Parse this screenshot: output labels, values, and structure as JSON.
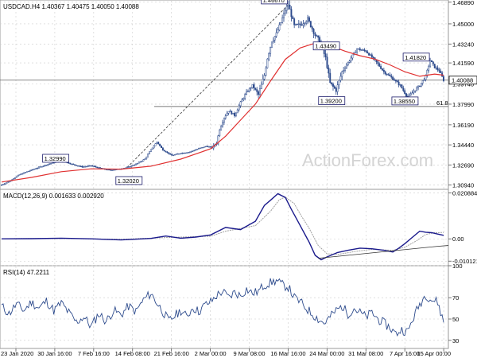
{
  "header": {
    "main": "USDCAD.H4  1.40367 1.40475 1.40050 1.40088",
    "macd": "MACD(12,26,9) 0.001633 0.002920",
    "rsi": "RSI(14) 47.2211"
  },
  "watermark": "ActionForex.com",
  "colors": {
    "candle": "#2c4a8c",
    "ma": "#e03030",
    "macd_line": "#1a1a8c",
    "signal_line": "#a0a0a0",
    "rsi_line": "#2c4a8c",
    "grid": "#cccccc",
    "level": "#505050"
  },
  "chart_data": [
    {
      "type": "candlestick",
      "title": "USDCAD.H4",
      "ylim": [
        1.3056,
        1.4708
      ],
      "yticks": [
        "1.46890",
        "1.45000",
        "1.43240",
        "1.41590",
        "1.39740",
        "1.37990",
        "1.36190",
        "1.34440",
        "1.32690",
        "1.30940"
      ],
      "current_price": "1.40088",
      "xticks": [
        "23 Jan 2020",
        "30 Jan 16:00",
        "7 Feb 16:00",
        "14 Feb 08:00",
        "21 Feb 16:00",
        "2 Mar 00:00",
        "9 Mar 08:00",
        "16 Mar 16:00",
        "24 Mar 00:00",
        "31 Mar 08:00",
        "7 Apr 16:00",
        "15 Apr 00:00"
      ],
      "annotations": [
        "1.32990",
        "1.32020",
        "1.46670",
        "1.43490",
        "1.39200",
        "1.38550",
        "1.41820"
      ],
      "fib_label": "61.8",
      "fib_level": 1.3779,
      "ma_series": "red moving average",
      "price_path": [
        [
          0,
          1.3095
        ],
        [
          5,
          1.3125
        ],
        [
          12,
          1.3185
        ],
        [
          20,
          1.3225
        ],
        [
          28,
          1.3262
        ],
        [
          36,
          1.3295
        ],
        [
          42,
          1.3298
        ],
        [
          48,
          1.3272
        ],
        [
          54,
          1.3252
        ],
        [
          60,
          1.3262
        ],
        [
          66,
          1.324
        ],
        [
          72,
          1.3224
        ],
        [
          78,
          1.3232
        ],
        [
          84,
          1.3246
        ],
        [
          90,
          1.3276
        ],
        [
          96,
          1.3321
        ],
        [
          100,
          1.3402
        ],
        [
          104,
          1.347
        ],
        [
          108,
          1.34
        ],
        [
          114,
          1.3352
        ],
        [
          120,
          1.3372
        ],
        [
          126,
          1.3382
        ],
        [
          132,
          1.3412
        ],
        [
          137,
          1.3432
        ],
        [
          141,
          1.3422
        ],
        [
          144,
          1.3461
        ],
        [
          146,
          1.3582
        ],
        [
          149,
          1.3682
        ],
        [
          152,
          1.3742
        ],
        [
          156,
          1.3702
        ],
        [
          160,
          1.3812
        ],
        [
          164,
          1.3902
        ],
        [
          168,
          1.3962
        ],
        [
          172,
          1.3882
        ],
        [
          176,
          1.4052
        ],
        [
          178,
          1.4202
        ],
        [
          181,
          1.4352
        ],
        [
          184,
          1.4412
        ],
        [
          187,
          1.4512
        ],
        [
          190,
          1.4622
        ],
        [
          192,
          1.4667
        ],
        [
          196,
          1.4482
        ],
        [
          200,
          1.4492
        ],
        [
          205,
          1.4542
        ],
        [
          210,
          1.4402
        ],
        [
          213,
          1.4349
        ],
        [
          217,
          1.4202
        ],
        [
          220,
          1.3982
        ],
        [
          224,
          1.392
        ],
        [
          228,
          1.4082
        ],
        [
          233,
          1.4182
        ],
        [
          238,
          1.4282
        ],
        [
          244,
          1.4262
        ],
        [
          250,
          1.4182
        ],
        [
          256,
          1.4082
        ],
        [
          262,
          1.4022
        ],
        [
          267,
          1.3962
        ],
        [
          272,
          1.3855
        ],
        [
          276,
          1.3912
        ],
        [
          280,
          1.3962
        ],
        [
          284,
          1.4042
        ],
        [
          287,
          1.4182
        ],
        [
          290,
          1.4122
        ],
        [
          293,
          1.4092
        ],
        [
          296,
          1.4009
        ]
      ],
      "ma_path": [
        [
          0,
          1.312
        ],
        [
          20,
          1.316
        ],
        [
          40,
          1.321
        ],
        [
          60,
          1.3235
        ],
        [
          80,
          1.3232
        ],
        [
          100,
          1.3258
        ],
        [
          120,
          1.332
        ],
        [
          140,
          1.341
        ],
        [
          150,
          1.352
        ],
        [
          160,
          1.366
        ],
        [
          170,
          1.38
        ],
        [
          180,
          1.4
        ],
        [
          190,
          1.419
        ],
        [
          200,
          1.429
        ],
        [
          210,
          1.4332
        ],
        [
          220,
          1.431
        ],
        [
          230,
          1.4262
        ],
        [
          240,
          1.4222
        ],
        [
          250,
          1.4192
        ],
        [
          260,
          1.4142
        ],
        [
          270,
          1.4082
        ],
        [
          280,
          1.4042
        ],
        [
          290,
          1.4062
        ],
        [
          296,
          1.4052
        ]
      ]
    },
    {
      "type": "line",
      "title": "MACD(12,26,9)",
      "ylim": [
        -0.0122,
        0.0225
      ],
      "yticks": [
        "0.020884",
        "0.00",
        "-0.010121"
      ],
      "macd_path": [
        [
          0,
          0.0
        ],
        [
          20,
          0.0001
        ],
        [
          40,
          0.0003
        ],
        [
          60,
          0.0
        ],
        [
          80,
          -0.0005
        ],
        [
          100,
          0.0002
        ],
        [
          110,
          0.0013
        ],
        [
          120,
          0.0003
        ],
        [
          130,
          0.0008
        ],
        [
          140,
          0.0018
        ],
        [
          150,
          0.0052
        ],
        [
          160,
          0.0042
        ],
        [
          170,
          0.008
        ],
        [
          176,
          0.0152
        ],
        [
          180,
          0.0175
        ],
        [
          185,
          0.0205
        ],
        [
          190,
          0.0188
        ],
        [
          194,
          0.0135
        ],
        [
          198,
          0.0085
        ],
        [
          202,
          0.0035
        ],
        [
          206,
          -0.0015
        ],
        [
          210,
          -0.0075
        ],
        [
          214,
          -0.0095
        ],
        [
          218,
          -0.0082
        ],
        [
          225,
          -0.0062
        ],
        [
          232,
          -0.0052
        ],
        [
          240,
          -0.0042
        ],
        [
          248,
          -0.0045
        ],
        [
          256,
          -0.0052
        ],
        [
          262,
          -0.006
        ],
        [
          266,
          -0.0042
        ],
        [
          270,
          -0.0022
        ],
        [
          276,
          0.0012
        ],
        [
          280,
          0.0035
        ],
        [
          284,
          0.003
        ],
        [
          288,
          0.0028
        ],
        [
          292,
          0.0022
        ],
        [
          296,
          0.0016
        ]
      ],
      "signal_path": [
        [
          0,
          0.0001
        ],
        [
          40,
          0.0002
        ],
        [
          80,
          -0.0002
        ],
        [
          110,
          0.0006
        ],
        [
          140,
          0.0012
        ],
        [
          150,
          0.0035
        ],
        [
          170,
          0.006
        ],
        [
          180,
          0.0125
        ],
        [
          186,
          0.0178
        ],
        [
          190,
          0.019
        ],
        [
          196,
          0.016
        ],
        [
          200,
          0.0112
        ],
        [
          206,
          0.0048
        ],
        [
          212,
          -0.003
        ],
        [
          218,
          -0.0068
        ],
        [
          226,
          -0.007
        ],
        [
          236,
          -0.0058
        ],
        [
          248,
          -0.0048
        ],
        [
          262,
          -0.0052
        ],
        [
          270,
          -0.0038
        ],
        [
          278,
          -0.0008
        ],
        [
          284,
          0.002
        ],
        [
          290,
          0.0028
        ],
        [
          296,
          0.0029
        ]
      ],
      "trendline": [
        [
          212,
          -0.0088
        ],
        [
          292,
          -0.0034
        ]
      ]
    },
    {
      "type": "line",
      "title": "RSI(14)",
      "ylim": [
        22.4,
        100
      ],
      "yticks": [
        "100",
        "70",
        "50",
        "30"
      ],
      "rsi_path": [
        [
          0,
          62
        ],
        [
          5,
          55
        ],
        [
          10,
          64
        ],
        [
          15,
          58
        ],
        [
          20,
          66
        ],
        [
          25,
          60
        ],
        [
          30,
          67
        ],
        [
          35,
          58
        ],
        [
          40,
          65
        ],
        [
          45,
          56
        ],
        [
          50,
          47
        ],
        [
          55,
          52
        ],
        [
          60,
          43
        ],
        [
          65,
          55
        ],
        [
          70,
          48
        ],
        [
          75,
          58
        ],
        [
          80,
          54
        ],
        [
          85,
          62
        ],
        [
          90,
          57
        ],
        [
          95,
          68
        ],
        [
          100,
          74
        ],
        [
          104,
          65
        ],
        [
          108,
          57
        ],
        [
          112,
          48
        ],
        [
          116,
          53
        ],
        [
          120,
          58
        ],
        [
          124,
          52
        ],
        [
          128,
          61
        ],
        [
          132,
          57
        ],
        [
          136,
          63
        ],
        [
          140,
          66
        ],
        [
          144,
          72
        ],
        [
          148,
          76
        ],
        [
          152,
          70
        ],
        [
          156,
          75
        ],
        [
          160,
          72
        ],
        [
          164,
          78
        ],
        [
          168,
          74
        ],
        [
          172,
          76
        ],
        [
          176,
          82
        ],
        [
          180,
          84
        ],
        [
          184,
          86
        ],
        [
          188,
          82
        ],
        [
          192,
          80
        ],
        [
          196,
          70
        ],
        [
          200,
          66
        ],
        [
          204,
          60
        ],
        [
          208,
          55
        ],
        [
          212,
          50
        ],
        [
          216,
          46
        ],
        [
          220,
          52
        ],
        [
          224,
          58
        ],
        [
          228,
          62
        ],
        [
          232,
          55
        ],
        [
          236,
          60
        ],
        [
          240,
          56
        ],
        [
          244,
          52
        ],
        [
          248,
          56
        ],
        [
          252,
          50
        ],
        [
          256,
          46
        ],
        [
          260,
          42
        ],
        [
          264,
          36
        ],
        [
          268,
          40
        ],
        [
          272,
          38
        ],
        [
          276,
          52
        ],
        [
          280,
          64
        ],
        [
          284,
          73
        ],
        [
          288,
          68
        ],
        [
          292,
          66
        ],
        [
          296,
          47
        ]
      ]
    }
  ]
}
